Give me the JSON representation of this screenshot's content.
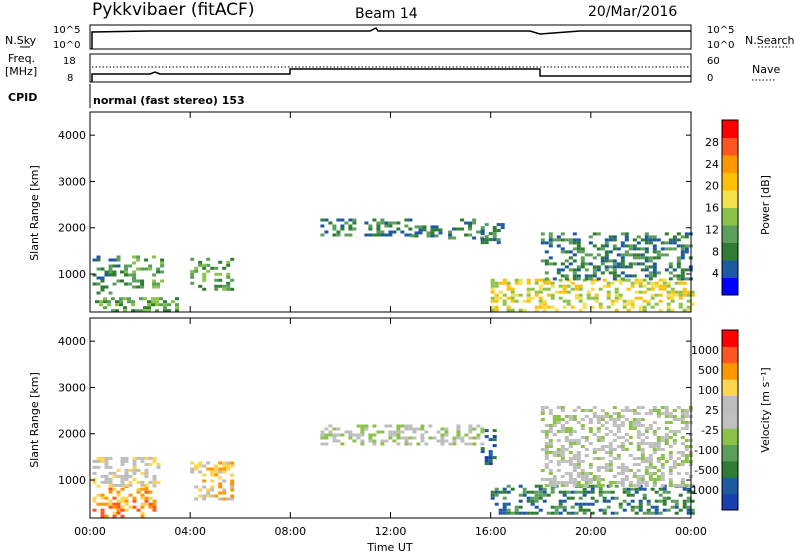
{
  "header": {
    "station": "Pykkvibaer (fitACF)",
    "beam": "Beam 14",
    "date": "20/Mar/2016"
  },
  "status_panels": {
    "nsky_label": "N.Sky",
    "nsky_ticks": [
      "10^5",
      "10^0"
    ],
    "nsearch_label": "N.Search",
    "nsearch_ticks": [
      "10^5",
      "10^0"
    ],
    "freq_label_1": "Freq.",
    "freq_label_2": "[MHz]",
    "freq_ticks": [
      "18",
      "8"
    ],
    "nave_label": "Nave",
    "nave_ticks": [
      "60",
      "0"
    ],
    "cpid_label": "CPID",
    "cpid_text": "normal (fast stereo) 153"
  },
  "colorbars": {
    "power": {
      "label": "Power [dB]",
      "ticks": [
        "28",
        "24",
        "20",
        "16",
        "12",
        "8",
        "4"
      ],
      "colors": [
        "#0000ff",
        "#1e5aa0",
        "#2e7d32",
        "#5c9e5c",
        "#8bc34a",
        "#f4e04d",
        "#ffc107",
        "#ff9800",
        "#ff5722",
        "#ff0000"
      ]
    },
    "velocity": {
      "label": "Velocity [m s⁻¹]",
      "ticks": [
        "1000",
        "500",
        "100",
        "25",
        "-25",
        "-100",
        "-500",
        "-1000"
      ],
      "colors": [
        "#1a3fb0",
        "#1e5aa0",
        "#2e7d32",
        "#5c9e5c",
        "#8bc34a",
        "#c0c0c0",
        "#bdbdbd",
        "#ffd54f",
        "#ff9800",
        "#ff5722",
        "#ff0000"
      ]
    }
  },
  "chart_data": [
    {
      "type": "heatmap",
      "name": "power",
      "ylabel": "Slant Range [km]",
      "ylim": [
        180,
        4500
      ],
      "y_ticks": [
        "4000",
        "3000",
        "2000",
        "1000"
      ],
      "xlim": [
        "00:00",
        "24:00"
      ],
      "echo_regions": [
        {
          "t0": 0.1,
          "t1": 1.2,
          "r0": 600,
          "r1": 1400,
          "level": 2
        },
        {
          "t0": 1.2,
          "t1": 2.8,
          "r0": 700,
          "r1": 1400,
          "level": 3
        },
        {
          "t0": 4.0,
          "t1": 5.6,
          "r0": 650,
          "r1": 1350,
          "level": 3
        },
        {
          "t0": 9.2,
          "t1": 12.8,
          "r0": 1850,
          "r1": 2200,
          "level": 2
        },
        {
          "t0": 12.8,
          "t1": 14.0,
          "r0": 1800,
          "r1": 2050,
          "level": 2
        },
        {
          "t0": 14.3,
          "t1": 15.6,
          "r0": 1800,
          "r1": 2200,
          "level": 2
        },
        {
          "t0": 15.6,
          "t1": 16.4,
          "r0": 1700,
          "r1": 2100,
          "level": 2
        },
        {
          "t0": 16.0,
          "t1": 24.0,
          "r0": 200,
          "r1": 900,
          "level": 5
        },
        {
          "t0": 18.0,
          "t1": 24.0,
          "r0": 900,
          "r1": 1900,
          "level": 2
        },
        {
          "t0": 0.2,
          "t1": 3.5,
          "r0": 180,
          "r1": 500,
          "level": 3
        }
      ]
    },
    {
      "type": "heatmap",
      "name": "velocity",
      "ylabel": "Slant Range [km]",
      "xlabel": "Time UT",
      "ylim": [
        180,
        4500
      ],
      "y_ticks": [
        "4000",
        "3000",
        "2000",
        "1000"
      ],
      "x_ticks": [
        "00:00",
        "04:00",
        "08:00",
        "12:00",
        "16:00",
        "20:00",
        "00:00"
      ],
      "xlim": [
        "00:00",
        "24:00"
      ],
      "echo_regions": [
        {
          "t0": 0.1,
          "t1": 2.6,
          "r0": 200,
          "r1": 900,
          "level": 8
        },
        {
          "t0": 0.1,
          "t1": 2.8,
          "r0": 900,
          "r1": 1500,
          "level": 6
        },
        {
          "t0": 4.0,
          "t1": 5.6,
          "r0": 600,
          "r1": 1400,
          "level": 7
        },
        {
          "t0": 9.2,
          "t1": 15.6,
          "r0": 1800,
          "r1": 2200,
          "level": 5
        },
        {
          "t0": 15.6,
          "t1": 16.2,
          "r0": 1300,
          "r1": 2100,
          "level": 1
        },
        {
          "t0": 16.0,
          "t1": 24.0,
          "r0": 300,
          "r1": 900,
          "level": 2
        },
        {
          "t0": 18.0,
          "t1": 24.0,
          "r0": 900,
          "r1": 2600,
          "level": 5
        }
      ]
    }
  ]
}
